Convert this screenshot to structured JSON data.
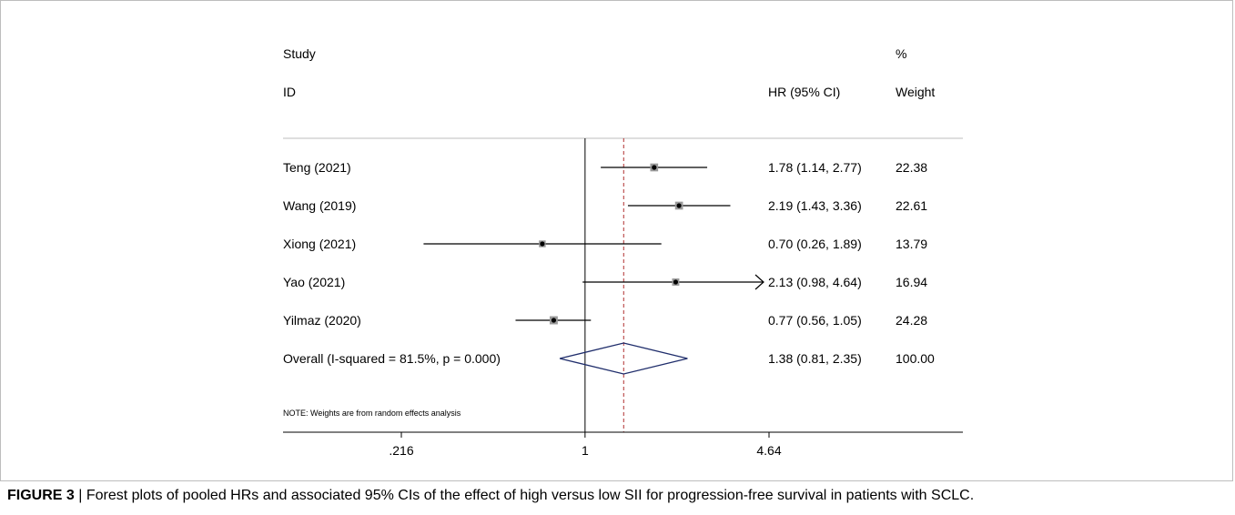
{
  "caption": {
    "label": "FIGURE 3",
    "text": "| Forest plots of pooled HRs and associated 95% CIs of the effect of high versus low SII for progression-free survival in patients with SCLC."
  },
  "chart_data": {
    "type": "forest",
    "headers": {
      "study_top": "Study",
      "study_bottom": "ID",
      "hr": "HR (95% CI)",
      "weight_top": "%",
      "weight_bottom": "Weight"
    },
    "studies": [
      {
        "label": "Teng (2021)",
        "hr": 1.78,
        "lo": 1.14,
        "hi": 2.77,
        "hr_text": "1.78 (1.14, 2.77)",
        "weight_text": "22.38",
        "weight": 22.38
      },
      {
        "label": "Wang (2019)",
        "hr": 2.19,
        "lo": 1.43,
        "hi": 3.36,
        "hr_text": "2.19 (1.43, 3.36)",
        "weight_text": "22.61",
        "weight": 22.61
      },
      {
        "label": "Xiong (2021)",
        "hr": 0.7,
        "lo": 0.26,
        "hi": 1.89,
        "hr_text": "0.70 (0.26, 1.89)",
        "weight_text": "13.79",
        "weight": 13.79
      },
      {
        "label": "Yao (2021)",
        "hr": 2.13,
        "lo": 0.98,
        "hi": 4.64,
        "hr_text": "2.13 (0.98, 4.64)",
        "weight_text": "16.94",
        "weight": 16.94
      },
      {
        "label": "Yilmaz (2020)",
        "hr": 0.77,
        "lo": 0.56,
        "hi": 1.05,
        "hr_text": "0.77 (0.56, 1.05)",
        "weight_text": "24.28",
        "weight": 24.28
      }
    ],
    "overall": {
      "label": "Overall  (I-squared = 81.5%, p = 0.000)",
      "hr": 1.38,
      "lo": 0.81,
      "hi": 2.35,
      "hr_text": "1.38 (0.81, 2.35)",
      "weight_text": "100.00"
    },
    "note": "NOTE: Weights are from random effects analysis",
    "x_scale": "log",
    "xlim": [
      0.216,
      4.64
    ],
    "null_value": 1,
    "ticks": [
      {
        "value": 0.216,
        "label": ".216"
      },
      {
        "value": 1,
        "label": "1"
      },
      {
        "value": 4.64,
        "label": "4.64"
      }
    ],
    "colors": {
      "diamond": "#1f2d6b",
      "overall_line": "#b03030",
      "marker": "#000000"
    }
  }
}
